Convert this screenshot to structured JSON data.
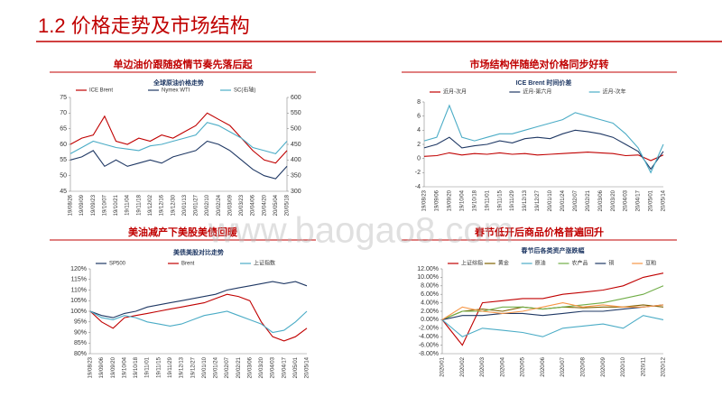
{
  "page_title": "1.2 价格走势及市场结构",
  "watermark": "www.baogao8.com",
  "chart_data": [
    {
      "type": "line",
      "section_title": "单边油价跟随疫情节奏先落后起",
      "title": "全球原油价格走势",
      "categories": [
        "19/08/26",
        "19/09/09",
        "19/09/23",
        "19/10/07",
        "19/10/21",
        "19/11/04",
        "19/11/18",
        "19/12/02",
        "19/12/16",
        "19/12/30",
        "20/01/13",
        "20/01/27",
        "20/02/10",
        "20/02/24",
        "20/03/09",
        "20/03/23",
        "20/04/06",
        "20/04/20",
        "20/05/04",
        "20/05/18"
      ],
      "ylim": [
        45,
        75
      ],
      "yticks": [
        45,
        50,
        55,
        60,
        65,
        70,
        75
      ],
      "y2lim": [
        300,
        600
      ],
      "y2ticks": [
        300,
        350,
        400,
        450,
        500,
        550,
        600
      ],
      "series": [
        {
          "name": "ICE Brent",
          "color": "#c00000",
          "values": [
            60,
            62,
            63,
            69,
            61,
            60,
            62,
            61,
            63,
            62,
            64,
            66,
            70,
            68,
            66,
            62,
            58,
            55,
            54,
            58
          ]
        },
        {
          "name": "Nymex WTI",
          "color": "#1f3864",
          "values": [
            55,
            56,
            58,
            53,
            55,
            53,
            54,
            55,
            54,
            56,
            57,
            58,
            61,
            60,
            58,
            55,
            52,
            50,
            49,
            53
          ]
        },
        {
          "name": "SC(右轴)",
          "color": "#4bacc6",
          "axis": "y2",
          "values": [
            420,
            440,
            460,
            450,
            440,
            435,
            430,
            445,
            450,
            460,
            470,
            480,
            520,
            510,
            490,
            470,
            440,
            430,
            420,
            460
          ]
        }
      ]
    },
    {
      "type": "line",
      "section_title": "市场结构伴随绝对价格同步好转",
      "title": "ICE Brent 时间价差",
      "categories": [
        "19/08/23",
        "19/09/06",
        "19/09/20",
        "19/10/04",
        "19/10/18",
        "19/11/01",
        "19/11/15",
        "19/11/29",
        "19/12/13",
        "19/12/27",
        "20/01/10",
        "20/01/24",
        "20/02/07",
        "20/02/21",
        "20/03/06",
        "20/03/20",
        "20/04/03",
        "20/04/17",
        "20/05/01",
        "20/05/14"
      ],
      "ylim": [
        -4,
        8
      ],
      "yticks": [
        -4,
        -2,
        0,
        2,
        4,
        6,
        8
      ],
      "series": [
        {
          "name": "近月-次月",
          "color": "#c00000",
          "values": [
            0.3,
            0.4,
            0.8,
            0.5,
            0.7,
            0.6,
            0.8,
            0.6,
            0.7,
            0.5,
            0.6,
            0.7,
            0.8,
            0.9,
            0.8,
            0.7,
            0.4,
            0.5,
            -0.3,
            0.5
          ]
        },
        {
          "name": "近月-第六月",
          "color": "#1f3864",
          "values": [
            1.5,
            2,
            3,
            1.5,
            1.8,
            2,
            2.5,
            2.2,
            2.8,
            3,
            2.8,
            3.5,
            4,
            3.8,
            3.5,
            3,
            2,
            1,
            -1.5,
            1
          ]
        },
        {
          "name": "近月-次年",
          "color": "#4bacc6",
          "values": [
            2.5,
            3,
            7.5,
            3,
            2.5,
            3,
            3.5,
            3.5,
            4,
            4.5,
            5,
            5.5,
            6.5,
            6,
            5.5,
            5,
            3.5,
            1.5,
            -2,
            2
          ]
        }
      ]
    },
    {
      "type": "line",
      "section_title": "美油减产下美股美债回暖",
      "title": "美债美股对比走势",
      "categories": [
        "19/08/23",
        "19/09/06",
        "19/09/20",
        "19/10/04",
        "19/10/18",
        "19/11/01",
        "19/11/15",
        "19/11/29",
        "19/12/13",
        "19/12/27",
        "20/01/10",
        "20/01/24",
        "20/02/07",
        "20/02/21",
        "20/03/06",
        "20/03/20",
        "20/04/03",
        "20/04/17",
        "20/05/01",
        "20/05/14"
      ],
      "ylim": [
        80,
        120
      ],
      "yticks": [
        {
          "value": 80,
          "label": "80%"
        },
        {
          "value": 85,
          "label": "85%"
        },
        {
          "value": 90,
          "label": "90%"
        },
        {
          "value": 95,
          "label": "95%"
        },
        {
          "value": 100,
          "label": "100%"
        },
        {
          "value": 105,
          "label": "105%"
        },
        {
          "value": 110,
          "label": "110%"
        },
        {
          "value": 115,
          "label": "115%"
        },
        {
          "value": 120,
          "label": "120%"
        }
      ],
      "series": [
        {
          "name": "SP500",
          "color": "#1f3864",
          "values": [
            100,
            98,
            97,
            99,
            100,
            102,
            103,
            104,
            105,
            106,
            107,
            108,
            110,
            111,
            112,
            113,
            114,
            113,
            114,
            112
          ]
        },
        {
          "name": "Brent",
          "color": "#c00000",
          "values": [
            100,
            95,
            92,
            97,
            98,
            99,
            100,
            101,
            102,
            103,
            104,
            106,
            108,
            107,
            105,
            95,
            88,
            86,
            88,
            92
          ]
        },
        {
          "name": "上证指数",
          "color": "#4bacc6",
          "values": [
            100,
            97,
            96,
            98,
            97,
            95,
            94,
            93,
            94,
            96,
            98,
            99,
            100,
            98,
            96,
            94,
            90,
            91,
            95,
            100
          ]
        }
      ]
    },
    {
      "type": "line",
      "section_title": "春节低开后商品价格普遍回升",
      "title": "春节后各类资产涨跌幅",
      "categories": [
        "2020/01",
        "2020/02",
        "2020/03",
        "2020/04",
        "2020/05",
        "2020/06",
        "2020/07",
        "2020/08",
        "2020/09",
        "2020/10",
        "2020/11",
        "2020/12"
      ],
      "ylim": [
        -8,
        12
      ],
      "yticks": [
        {
          "value": -8,
          "label": "-8.00%"
        },
        {
          "value": -6,
          "label": "-6.00%"
        },
        {
          "value": -4,
          "label": "-4.00%"
        },
        {
          "value": -2,
          "label": "-2.00%"
        },
        {
          "value": 0,
          "label": "0.00%"
        },
        {
          "value": 2,
          "label": "2.00%"
        },
        {
          "value": 4,
          "label": "4.00%"
        },
        {
          "value": 6,
          "label": "6.00%"
        },
        {
          "value": 8,
          "label": "8.00%"
        },
        {
          "value": 10,
          "label": "10.00%"
        },
        {
          "value": 12,
          "label": "12.00%"
        }
      ],
      "series": [
        {
          "name": "上证综指",
          "color": "#c00000",
          "values": [
            0,
            -6,
            4,
            4.5,
            5,
            5,
            6,
            6.5,
            7,
            8,
            10,
            11
          ]
        },
        {
          "name": "黄金",
          "color": "#7f6000",
          "values": [
            0,
            2,
            2.5,
            2,
            3,
            2.5,
            3,
            2.8,
            3,
            3,
            3.5,
            3
          ]
        },
        {
          "name": "原油",
          "color": "#4bacc6",
          "values": [
            0,
            -4,
            -2,
            -2.5,
            -3,
            -4,
            -2,
            -1.5,
            -1,
            -2,
            1,
            0
          ]
        },
        {
          "name": "农产品",
          "color": "#70ad47",
          "values": [
            0,
            2,
            2,
            3,
            3,
            2.5,
            3,
            3.5,
            4,
            5,
            6,
            8
          ]
        },
        {
          "name": "铜",
          "color": "#1f3864",
          "values": [
            0,
            1,
            1,
            1.5,
            1.5,
            1,
            1.5,
            2,
            2,
            2.5,
            3,
            3.5
          ]
        },
        {
          "name": "豆粕",
          "color": "#f79646",
          "values": [
            0,
            3,
            2,
            1.5,
            2,
            3,
            4,
            3,
            3.5,
            3,
            3,
            3.5
          ]
        }
      ]
    }
  ]
}
